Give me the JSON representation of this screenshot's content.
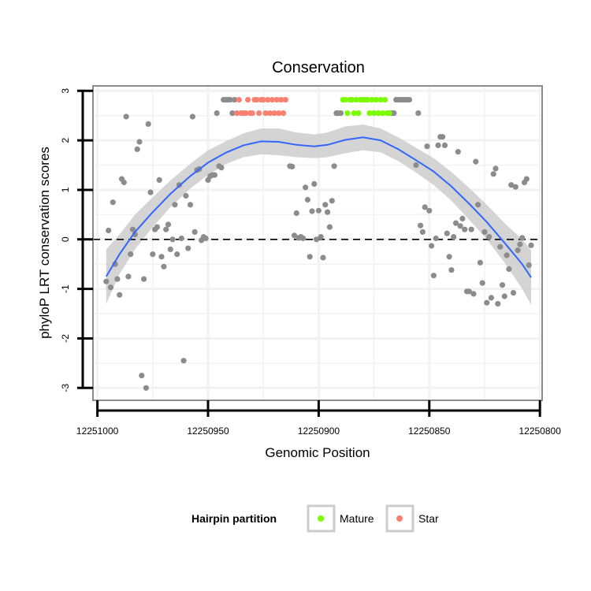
{
  "chart_data": {
    "type": "scatter",
    "title": "Conservation",
    "xlabel": "Genomic Position",
    "ylabel": "phyloP LRT conservation scores",
    "x_reversed": true,
    "xlim": [
      12251002,
      12250799
    ],
    "ylim": [
      -3.25,
      3.1
    ],
    "xticks": [
      12251000,
      12250950,
      12250900,
      12250850,
      12250800
    ],
    "xtick_labels": [
      "12251000",
      "12250950",
      "12250900",
      "12250850",
      "12250800"
    ],
    "yticks": [
      3,
      2,
      1,
      0,
      -1,
      -2,
      -3
    ],
    "ytick_labels": [
      "3",
      "2",
      "1",
      "0",
      "-1",
      "-2",
      "-3"
    ],
    "reference_line": {
      "y": 0,
      "style": "dashed"
    },
    "legend": {
      "title": "Hairpin partition",
      "position": "bottom",
      "entries": [
        {
          "label": "Mature",
          "color": "#7cfc00"
        },
        {
          "label": "Star",
          "color": "#fa8072"
        }
      ]
    },
    "colors": {
      "other": "#8c8c8c",
      "mature": "#7cfc00",
      "star": "#fa8072",
      "smooth": "#3366ff",
      "ribbon": "#cfcfcf",
      "frame": "#8c8c8c",
      "grid": "#f2f2f2"
    },
    "series": [
      {
        "name": "Other",
        "points": [
          [
            12250996,
            -0.85
          ],
          [
            12250995,
            0.18
          ],
          [
            12250994,
            -0.97
          ],
          [
            12250993,
            0.75
          ],
          [
            12250992,
            -0.5
          ],
          [
            12250991,
            -0.8
          ],
          [
            12250990,
            -1.12
          ],
          [
            12250989,
            1.22
          ],
          [
            12250988,
            1.15
          ],
          [
            12250987,
            2.48
          ],
          [
            12250986,
            -0.75
          ],
          [
            12250985,
            -0.3
          ],
          [
            12250984,
            0.2
          ],
          [
            12250983,
            0.1
          ],
          [
            12250982,
            1.82
          ],
          [
            12250981,
            1.97
          ],
          [
            12250980,
            -2.75
          ],
          [
            12250979,
            -0.8
          ],
          [
            12250978,
            -3.0
          ],
          [
            12250977,
            2.33
          ],
          [
            12250976,
            0.95
          ],
          [
            12250975,
            -0.3
          ],
          [
            12250974,
            0.2
          ],
          [
            12250973,
            0.25
          ],
          [
            12250972,
            1.2
          ],
          [
            12250971,
            -0.35
          ],
          [
            12250970,
            -0.55
          ],
          [
            12250969,
            0.2
          ],
          [
            12250968,
            0.3
          ],
          [
            12250967,
            -0.2
          ],
          [
            12250966,
            0.0
          ],
          [
            12250965,
            0.7
          ],
          [
            12250964,
            -0.3
          ],
          [
            12250963,
            1.1
          ],
          [
            12250962,
            0.02
          ],
          [
            12250961,
            -2.45
          ],
          [
            12250960,
            0.88
          ],
          [
            12250959,
            -0.18
          ],
          [
            12250958,
            0.7
          ],
          [
            12250957,
            2.48
          ],
          [
            12250956,
            0.15
          ],
          [
            12250955,
            1.4
          ],
          [
            12250954,
            1.42
          ],
          [
            12250953,
            -0.02
          ],
          [
            12250952,
            0.05
          ],
          [
            12250951,
            0.02
          ],
          [
            12250950,
            1.2
          ],
          [
            12250949,
            1.28
          ],
          [
            12250948,
            1.3
          ],
          [
            12250947,
            1.3
          ],
          [
            12250946,
            2.55
          ],
          [
            12250945,
            1.48
          ],
          [
            12250944,
            1.45
          ],
          [
            12250943,
            2.82
          ],
          [
            12250942,
            2.82
          ],
          [
            12250941,
            2.82
          ],
          [
            12250940,
            2.82
          ],
          [
            12250939,
            2.55
          ],
          [
            12250938,
            2.82
          ],
          [
            12250913,
            1.48
          ],
          [
            12250912,
            1.47
          ],
          [
            12250911,
            0.08
          ],
          [
            12250910,
            0.53
          ],
          [
            12250909,
            0.03
          ],
          [
            12250908,
            0.05
          ],
          [
            12250907,
            0.02
          ],
          [
            12250906,
            1.05
          ],
          [
            12250905,
            0.8
          ],
          [
            12250904,
            -0.35
          ],
          [
            12250903,
            0.57
          ],
          [
            12250902,
            1.12
          ],
          [
            12250901,
            0.0
          ],
          [
            12250900,
            0.58
          ],
          [
            12250899,
            0.05
          ],
          [
            12250898,
            -0.37
          ],
          [
            12250897,
            0.7
          ],
          [
            12250896,
            0.55
          ],
          [
            12250895,
            0.25
          ],
          [
            12250894,
            0.78
          ],
          [
            12250893,
            1.48
          ],
          [
            12250892,
            2.55
          ],
          [
            12250891,
            2.55
          ],
          [
            12250890,
            2.55
          ],
          [
            12250867,
            2.55
          ],
          [
            12250866,
            2.55
          ],
          [
            12250865,
            2.82
          ],
          [
            12250864,
            2.82
          ],
          [
            12250863,
            2.82
          ],
          [
            12250862,
            2.82
          ],
          [
            12250861,
            2.82
          ],
          [
            12250860,
            2.82
          ],
          [
            12250859,
            2.82
          ],
          [
            12250856,
            1.5
          ],
          [
            12250855,
            2.55
          ],
          [
            12250854,
            0.28
          ],
          [
            12250853,
            0.15
          ],
          [
            12250852,
            0.65
          ],
          [
            12250851,
            1.88
          ],
          [
            12250850,
            0.58
          ],
          [
            12250849,
            -0.13
          ],
          [
            12250848,
            -0.73
          ],
          [
            12250847,
            0.02
          ],
          [
            12250846,
            1.9
          ],
          [
            12250845,
            2.07
          ],
          [
            12250844,
            2.07
          ],
          [
            12250843,
            1.9
          ],
          [
            12250842,
            0.12
          ],
          [
            12250841,
            -0.35
          ],
          [
            12250840,
            -0.62
          ],
          [
            12250839,
            0.05
          ],
          [
            12250838,
            0.33
          ],
          [
            12250837,
            1.77
          ],
          [
            12250836,
            0.27
          ],
          [
            12250835,
            0.42
          ],
          [
            12250834,
            0.2
          ],
          [
            12250833,
            -1.05
          ],
          [
            12250832,
            -1.05
          ],
          [
            12250831,
            0.2
          ],
          [
            12250830,
            -1.1
          ],
          [
            12250829,
            1.57
          ],
          [
            12250828,
            0.7
          ],
          [
            12250827,
            -0.47
          ],
          [
            12250826,
            -0.88
          ],
          [
            12250825,
            0.15
          ],
          [
            12250824,
            -1.28
          ],
          [
            12250823,
            0.05
          ],
          [
            12250822,
            -1.18
          ],
          [
            12250821,
            1.32
          ],
          [
            12250820,
            1.43
          ],
          [
            12250819,
            -1.3
          ],
          [
            12250818,
            -0.15
          ],
          [
            12250817,
            -0.92
          ],
          [
            12250816,
            -1.15
          ],
          [
            12250815,
            -0.32
          ],
          [
            12250814,
            -0.6
          ],
          [
            12250813,
            1.1
          ],
          [
            12250812,
            -1.08
          ],
          [
            12250811,
            1.06
          ],
          [
            12250810,
            -0.22
          ],
          [
            12250809,
            -0.1
          ],
          [
            12250808,
            0.03
          ],
          [
            12250807,
            1.15
          ],
          [
            12250806,
            1.22
          ],
          [
            12250805,
            -0.52
          ],
          [
            12250804,
            -0.12
          ]
        ]
      },
      {
        "name": "Star",
        "points": [
          [
            12250937,
            2.55
          ],
          [
            12250936,
            2.82
          ],
          [
            12250935,
            2.55
          ],
          [
            12250934,
            2.55
          ],
          [
            12250933,
            2.55
          ],
          [
            12250932,
            2.82
          ],
          [
            12250931,
            2.55
          ],
          [
            12250930,
            2.55
          ],
          [
            12250929,
            2.82
          ],
          [
            12250928,
            2.82
          ],
          [
            12250927,
            2.55
          ],
          [
            12250926,
            2.82
          ],
          [
            12250925,
            2.82
          ],
          [
            12250924,
            2.55
          ],
          [
            12250923,
            2.82
          ],
          [
            12250922,
            2.55
          ],
          [
            12250921,
            2.82
          ],
          [
            12250920,
            2.55
          ],
          [
            12250919,
            2.82
          ],
          [
            12250918,
            2.55
          ],
          [
            12250917,
            2.82
          ],
          [
            12250916,
            2.55
          ],
          [
            12250915,
            2.82
          ]
        ]
      },
      {
        "name": "Mature",
        "points": [
          [
            12250889,
            2.82
          ],
          [
            12250888,
            2.82
          ],
          [
            12250887,
            2.55
          ],
          [
            12250886,
            2.82
          ],
          [
            12250885,
            2.82
          ],
          [
            12250884,
            2.55
          ],
          [
            12250883,
            2.82
          ],
          [
            12250882,
            2.55
          ],
          [
            12250881,
            2.82
          ],
          [
            12250880,
            2.82
          ],
          [
            12250879,
            2.82
          ],
          [
            12250878,
            2.82
          ],
          [
            12250877,
            2.55
          ],
          [
            12250876,
            2.82
          ],
          [
            12250875,
            2.55
          ],
          [
            12250874,
            2.82
          ],
          [
            12250873,
            2.55
          ],
          [
            12250872,
            2.82
          ],
          [
            12250871,
            2.55
          ],
          [
            12250870,
            2.82
          ],
          [
            12250869,
            2.55
          ],
          [
            12250868,
            2.55
          ]
        ]
      }
    ],
    "smooth_line": {
      "x": [
        12250996,
        12250990,
        12250983,
        12250975,
        12250967,
        12250958,
        12250950,
        12250942,
        12250934,
        12250926,
        12250918,
        12250910,
        12250902,
        12250896,
        12250888,
        12250880,
        12250872,
        12250864,
        12250856,
        12250848,
        12250840,
        12250832,
        12250824,
        12250816,
        12250808,
        12250804
      ],
      "y": [
        -0.75,
        -0.3,
        0.15,
        0.55,
        0.92,
        1.28,
        1.55,
        1.75,
        1.9,
        1.98,
        1.97,
        1.91,
        1.88,
        1.91,
        2.01,
        2.06,
        2.0,
        1.82,
        1.6,
        1.37,
        1.07,
        0.72,
        0.35,
        -0.07,
        -0.5,
        -0.77
      ]
    },
    "confidence_band": {
      "x": [
        12250996,
        12250990,
        12250983,
        12250975,
        12250967,
        12250958,
        12250950,
        12250942,
        12250934,
        12250926,
        12250918,
        12250910,
        12250902,
        12250896,
        12250888,
        12250880,
        12250872,
        12250864,
        12250856,
        12250848,
        12250840,
        12250832,
        12250824,
        12250816,
        12250808,
        12250804
      ],
      "lower": [
        -1.3,
        -0.7,
        -0.2,
        0.25,
        0.65,
        1.03,
        1.3,
        1.52,
        1.66,
        1.72,
        1.7,
        1.66,
        1.64,
        1.66,
        1.74,
        1.8,
        1.76,
        1.58,
        1.35,
        1.1,
        0.78,
        0.4,
        0.0,
        -0.47,
        -1.0,
        -1.32
      ],
      "upper": [
        -0.2,
        0.1,
        0.5,
        0.85,
        1.19,
        1.53,
        1.8,
        1.98,
        2.14,
        2.24,
        2.24,
        2.16,
        2.12,
        2.16,
        2.28,
        2.32,
        2.24,
        2.06,
        1.85,
        1.64,
        1.36,
        1.04,
        0.7,
        0.33,
        0.0,
        -0.22
      ]
    }
  }
}
